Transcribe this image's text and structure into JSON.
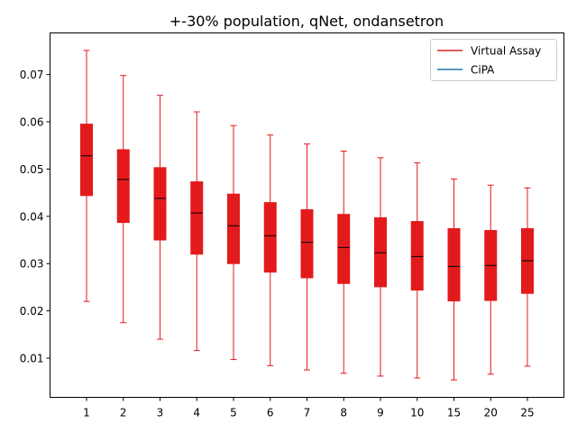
{
  "chart_data": {
    "type": "box",
    "title": "+-30% population, qNet, ondansetron",
    "xlabel": "",
    "ylabel": "",
    "ylim": [
      0.0017,
      0.0788
    ],
    "yticks": [
      0.01,
      0.02,
      0.03,
      0.04,
      0.05,
      0.06,
      0.07
    ],
    "ytick_labels": [
      "0.01",
      "0.02",
      "0.03",
      "0.04",
      "0.05",
      "0.06",
      "0.07"
    ],
    "categories": [
      "1",
      "2",
      "3",
      "4",
      "5",
      "6",
      "7",
      "8",
      "9",
      "10",
      "15",
      "20",
      "25"
    ],
    "legend": {
      "position": "top-right",
      "entries": [
        {
          "label": "Virtual Assay",
          "color": "#d62728"
        },
        {
          "label": "CiPA",
          "color": "#1f77b4"
        }
      ]
    },
    "series": [
      {
        "name": "Virtual Assay",
        "color": "#e31a1c",
        "boxes": [
          {
            "min": 0.022,
            "q1": 0.0444,
            "median": 0.0528,
            "q3": 0.0595,
            "max": 0.0751
          },
          {
            "min": 0.0175,
            "q1": 0.0387,
            "median": 0.0478,
            "q3": 0.0541,
            "max": 0.0698
          },
          {
            "min": 0.014,
            "q1": 0.035,
            "median": 0.0438,
            "q3": 0.0503,
            "max": 0.0656
          },
          {
            "min": 0.0116,
            "q1": 0.032,
            "median": 0.0407,
            "q3": 0.0473,
            "max": 0.0621
          },
          {
            "min": 0.0097,
            "q1": 0.03,
            "median": 0.038,
            "q3": 0.0447,
            "max": 0.0592
          },
          {
            "min": 0.0084,
            "q1": 0.0282,
            "median": 0.0359,
            "q3": 0.0429,
            "max": 0.0572
          },
          {
            "min": 0.0075,
            "q1": 0.027,
            "median": 0.0345,
            "q3": 0.0414,
            "max": 0.0553
          },
          {
            "min": 0.0068,
            "q1": 0.0258,
            "median": 0.0334,
            "q3": 0.0404,
            "max": 0.0538
          },
          {
            "min": 0.0062,
            "q1": 0.0251,
            "median": 0.0323,
            "q3": 0.0397,
            "max": 0.0524
          },
          {
            "min": 0.0058,
            "q1": 0.0244,
            "median": 0.0315,
            "q3": 0.0389,
            "max": 0.0513
          },
          {
            "min": 0.0054,
            "q1": 0.0221,
            "median": 0.0294,
            "q3": 0.0374,
            "max": 0.0479
          },
          {
            "min": 0.0066,
            "q1": 0.0222,
            "median": 0.0296,
            "q3": 0.037,
            "max": 0.0466
          },
          {
            "min": 0.0083,
            "q1": 0.0237,
            "median": 0.0306,
            "q3": 0.0374,
            "max": 0.046
          }
        ]
      },
      {
        "name": "CiPA",
        "color": "#1f77b4",
        "boxes": []
      }
    ],
    "grid": false
  }
}
